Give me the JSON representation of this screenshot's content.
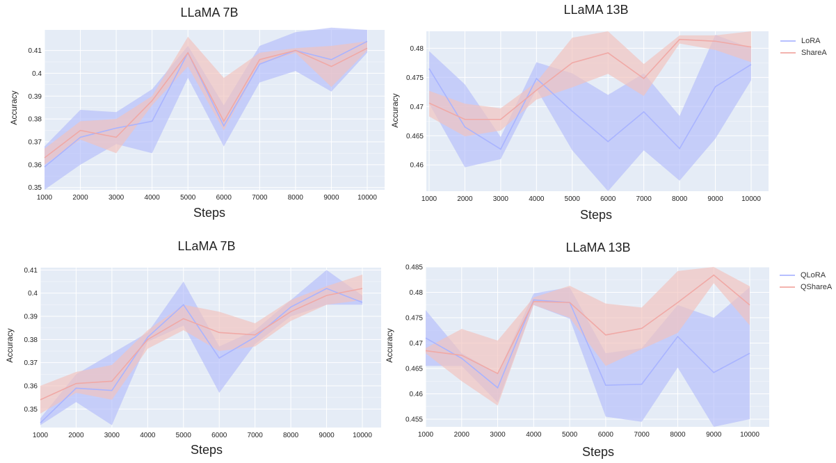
{
  "colors": {
    "plot_bg": "#e5ecf6",
    "grid": "#ffffff",
    "blue_line": "#a9b4ff",
    "blue_band": "#b4bdfa",
    "red_line": "#f0a9a6",
    "red_band": "#f3c1bc"
  },
  "panels": [
    {
      "id": "tl",
      "title": "LLaMA 7B",
      "xlabel": "Steps",
      "ylabel": "Accuracy"
    },
    {
      "id": "tr",
      "title": "LLaMA 13B",
      "xlabel": "Steps",
      "ylabel": "Accuracy",
      "legend": [
        "LoRA",
        "ShareA"
      ]
    },
    {
      "id": "bl",
      "title": "LLaMA 7B",
      "xlabel": "Steps",
      "ylabel": "Accuracy"
    },
    {
      "id": "br",
      "title": "LLaMA 13B",
      "xlabel": "Steps",
      "ylabel": "Accuracy",
      "legend": [
        "QLoRA",
        "QShareA"
      ]
    }
  ],
  "chart_data": [
    {
      "type": "line",
      "title": "LLaMA 7B",
      "xlabel": "Steps",
      "ylabel": "Accuracy",
      "x": [
        1000,
        2000,
        3000,
        4000,
        5000,
        6000,
        7000,
        8000,
        9000,
        10000
      ],
      "xticks": [
        "1000",
        "2000",
        "3000",
        "4000",
        "5000",
        "6000",
        "7000",
        "8000",
        "9000",
        "10000"
      ],
      "ylim": [
        0.349,
        0.419
      ],
      "yticks": [
        0.35,
        0.36,
        0.37,
        0.38,
        0.39,
        0.4,
        0.41
      ],
      "ytick_labels": [
        "0.35",
        "0.36",
        "0.37",
        "0.38",
        "0.39",
        "0.4",
        "0.41"
      ],
      "grid": true,
      "series": [
        {
          "color_key": "blue",
          "values": [
            0.359,
            0.372,
            0.376,
            0.379,
            0.409,
            0.377,
            0.404,
            0.41,
            0.406,
            0.414
          ],
          "upper": [
            0.368,
            0.384,
            0.383,
            0.393,
            0.412,
            0.386,
            0.412,
            0.418,
            0.42,
            0.419
          ],
          "lower": [
            0.349,
            0.36,
            0.369,
            0.365,
            0.398,
            0.368,
            0.396,
            0.401,
            0.392,
            0.409
          ]
        },
        {
          "color_key": "red",
          "values": [
            0.363,
            0.375,
            0.372,
            0.388,
            0.409,
            0.379,
            0.406,
            0.41,
            0.403,
            0.411
          ],
          "upper": [
            0.367,
            0.379,
            0.38,
            0.39,
            0.416,
            0.398,
            0.409,
            0.411,
            0.412,
            0.414
          ],
          "lower": [
            0.36,
            0.371,
            0.365,
            0.386,
            0.403,
            0.375,
            0.404,
            0.409,
            0.394,
            0.41
          ]
        }
      ]
    },
    {
      "type": "line",
      "title": "LLaMA 13B",
      "xlabel": "Steps",
      "ylabel": "Accuracy",
      "x": [
        1000,
        2000,
        3000,
        4000,
        5000,
        6000,
        7000,
        8000,
        9000,
        10000
      ],
      "xticks": [
        "1000",
        "2000",
        "3000",
        "4000",
        "5000",
        "6000",
        "7000",
        "8000",
        "9000",
        "10000"
      ],
      "ylim": [
        0.4555,
        0.4829
      ],
      "yticks": [
        0.46,
        0.465,
        0.47,
        0.475,
        0.48
      ],
      "ytick_labels": [
        "0.46",
        "0.465",
        "0.47",
        "0.475",
        "0.48"
      ],
      "grid": true,
      "legend_position": "top-right",
      "series": [
        {
          "name": "LoRA",
          "color_key": "blue",
          "values": [
            0.4765,
            0.4665,
            0.4627,
            0.4748,
            0.4692,
            0.464,
            0.4691,
            0.4628,
            0.4734,
            0.4772
          ],
          "upper": [
            0.4795,
            0.4738,
            0.4648,
            0.4776,
            0.4757,
            0.472,
            0.4757,
            0.4684,
            0.4823,
            0.48
          ],
          "lower": [
            0.4705,
            0.4596,
            0.461,
            0.473,
            0.4625,
            0.4555,
            0.4625,
            0.4573,
            0.4645,
            0.4745
          ]
        },
        {
          "name": "ShareA",
          "color_key": "red",
          "values": [
            0.4706,
            0.4678,
            0.4678,
            0.4728,
            0.4775,
            0.4792,
            0.4748,
            0.4815,
            0.4812,
            0.4802
          ],
          "upper": [
            0.4727,
            0.4705,
            0.4697,
            0.4742,
            0.4818,
            0.4829,
            0.4773,
            0.4822,
            0.4822,
            0.4829
          ],
          "lower": [
            0.4683,
            0.4649,
            0.4659,
            0.4712,
            0.4733,
            0.4756,
            0.4718,
            0.4808,
            0.4797,
            0.4776
          ]
        }
      ]
    },
    {
      "type": "line",
      "title": "LLaMA 7B",
      "xlabel": "Steps",
      "ylabel": "Accuracy",
      "x": [
        1000,
        2000,
        3000,
        4000,
        5000,
        6000,
        7000,
        8000,
        9000,
        10000
      ],
      "xticks": [
        "1000",
        "2000",
        "3000",
        "4000",
        "5000",
        "6000",
        "7000",
        "8000",
        "9000",
        "10000"
      ],
      "ylim": [
        0.342,
        0.411
      ],
      "yticks": [
        0.35,
        0.36,
        0.37,
        0.38,
        0.39,
        0.4,
        0.41
      ],
      "ytick_labels": [
        "0.35",
        "0.36",
        "0.37",
        "0.38",
        "0.39",
        "0.4",
        "0.41"
      ],
      "grid": true,
      "series": [
        {
          "color_key": "blue",
          "values": [
            0.344,
            0.359,
            0.358,
            0.381,
            0.395,
            0.372,
            0.381,
            0.394,
            0.402,
            0.396
          ],
          "upper": [
            0.346,
            0.365,
            0.374,
            0.383,
            0.405,
            0.377,
            0.384,
            0.397,
            0.41,
            0.399
          ],
          "lower": [
            0.343,
            0.353,
            0.343,
            0.379,
            0.386,
            0.357,
            0.378,
            0.39,
            0.395,
            0.395
          ]
        },
        {
          "color_key": "red",
          "values": [
            0.354,
            0.361,
            0.362,
            0.38,
            0.389,
            0.383,
            0.382,
            0.392,
            0.399,
            0.402
          ],
          "upper": [
            0.36,
            0.366,
            0.369,
            0.384,
            0.395,
            0.392,
            0.387,
            0.397,
            0.403,
            0.408
          ],
          "lower": [
            0.348,
            0.357,
            0.354,
            0.376,
            0.384,
            0.375,
            0.377,
            0.388,
            0.395,
            0.397
          ]
        }
      ]
    },
    {
      "type": "line",
      "title": "LLaMA 13B",
      "xlabel": "Steps",
      "ylabel": "Accuracy",
      "x": [
        1000,
        2000,
        3000,
        4000,
        5000,
        6000,
        7000,
        8000,
        9000,
        10000
      ],
      "xticks": [
        "1000",
        "2000",
        "3000",
        "4000",
        "5000",
        "6000",
        "7000",
        "8000",
        "9000",
        "10000"
      ],
      "ylim": [
        0.4535,
        0.485
      ],
      "yticks": [
        0.455,
        0.46,
        0.465,
        0.47,
        0.475,
        0.48,
        0.485
      ],
      "ytick_labels": [
        "0.455",
        "0.46",
        "0.465",
        "0.47",
        "0.475",
        "0.48",
        "0.485"
      ],
      "grid": true,
      "legend_position": "top-right",
      "series": [
        {
          "name": "QLoRA",
          "color_key": "blue",
          "values": [
            0.471,
            0.467,
            0.4612,
            0.4785,
            0.478,
            0.4617,
            0.4619,
            0.4713,
            0.4642,
            0.468
          ],
          "upper": [
            0.4765,
            0.468,
            0.464,
            0.4798,
            0.481,
            0.468,
            0.469,
            0.4775,
            0.475,
            0.481
          ],
          "lower": [
            0.4655,
            0.4655,
            0.4583,
            0.4775,
            0.4748,
            0.4555,
            0.4545,
            0.4652,
            0.4535,
            0.455
          ]
        },
        {
          "name": "QShareA",
          "color_key": "red",
          "values": [
            0.4685,
            0.4676,
            0.464,
            0.4782,
            0.478,
            0.4716,
            0.4729,
            0.478,
            0.4834,
            0.4775
          ],
          "upper": [
            0.469,
            0.4728,
            0.4705,
            0.479,
            0.4813,
            0.4778,
            0.477,
            0.4842,
            0.485,
            0.4812
          ],
          "lower": [
            0.468,
            0.4625,
            0.4577,
            0.4775,
            0.475,
            0.4655,
            0.4688,
            0.472,
            0.4818,
            0.4735
          ]
        }
      ]
    }
  ]
}
